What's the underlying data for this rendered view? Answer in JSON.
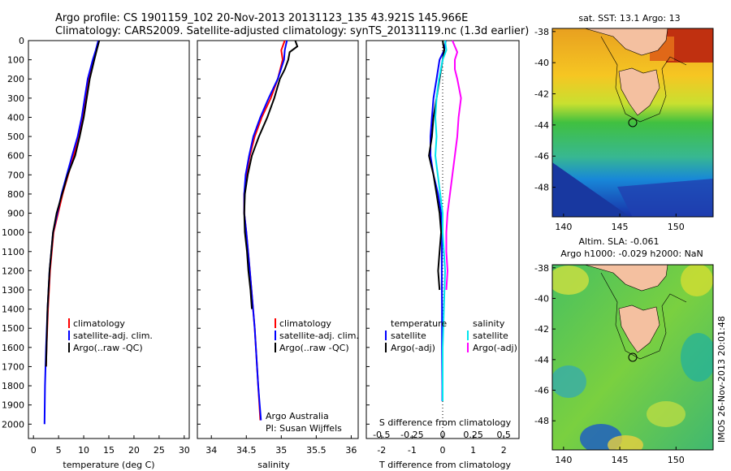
{
  "header": {
    "line1": "Argo profile: CS 1901159_102 20-Nov-2013 20131123_135 43.921S 145.966E",
    "line2": "Climatology: CARS2009. Satellite-adjusted climatology: synTS_20131119.nc (1.3d earlier)"
  },
  "colors": {
    "climatology": "#ff0000",
    "satellite": "#0000ff",
    "argo": "#000000",
    "salinity_sat": "#00e5ee",
    "salinity_argo": "#ff00ff"
  },
  "depth_axis": {
    "ticks": [
      "0",
      "100",
      "200",
      "300",
      "400",
      "500",
      "600",
      "700",
      "800",
      "900",
      "1000",
      "1100",
      "1200",
      "1300",
      "1400",
      "1500",
      "1600",
      "1700",
      "1800",
      "1900",
      "2000"
    ]
  },
  "chart_data": [
    {
      "type": "line",
      "panel": "temperature",
      "xlabel": "temperature (deg C)",
      "xlim": [
        -1,
        31
      ],
      "xticks": [
        "0",
        "5",
        "10",
        "15",
        "20",
        "25",
        "30"
      ],
      "ylim": [
        2075,
        0
      ],
      "legend": [
        "climatology",
        "satellite-adj. clim.",
        "Argo(..raw -QC)"
      ],
      "series": [
        {
          "name": "climatology",
          "depth": [
            0,
            50,
            100,
            200,
            300,
            400,
            500,
            600,
            800,
            1000,
            1200,
            1400,
            1600,
            1700
          ],
          "values": [
            13.0,
            12.5,
            12.0,
            11.0,
            10.4,
            9.8,
            9.0,
            8.0,
            5.8,
            4.0,
            3.3,
            2.9,
            2.6,
            2.5
          ]
        },
        {
          "name": "satellite-adj. clim.",
          "depth": [
            0,
            50,
            100,
            200,
            300,
            400,
            500,
            600,
            800,
            1000,
            1200,
            1400,
            1600,
            1800,
            2000
          ],
          "values": [
            12.9,
            12.4,
            11.8,
            10.8,
            10.2,
            9.6,
            8.8,
            7.7,
            5.6,
            3.9,
            3.2,
            2.8,
            2.5,
            2.3,
            2.2
          ]
        },
        {
          "name": "Argo(..raw -QC)",
          "depth": [
            0,
            50,
            100,
            200,
            300,
            400,
            500,
            600,
            700,
            800,
            900,
            1000,
            1200,
            1400,
            1600,
            1700
          ],
          "values": [
            13.1,
            12.6,
            12.1,
            11.2,
            10.6,
            10.0,
            9.2,
            8.3,
            6.8,
            5.7,
            4.6,
            3.9,
            3.2,
            2.8,
            2.6,
            2.5
          ]
        }
      ]
    },
    {
      "type": "line",
      "panel": "salinity",
      "xlabel": "salinity",
      "xlim": [
        33.8,
        36.1
      ],
      "xticks": [
        "34",
        "34.5",
        "35",
        "35.5",
        "36"
      ],
      "ylim": [
        2075,
        0
      ],
      "legend": [
        "climatology",
        "satellite-adj. clim.",
        "Argo(..raw -QC)"
      ],
      "annotation": [
        "Argo Australia",
        "PI: Susan Wijffels"
      ],
      "series": [
        {
          "name": "climatology",
          "depth": [
            0,
            50,
            100,
            200,
            300,
            400,
            500,
            600,
            700,
            800,
            900,
            1000,
            1200,
            1500,
            1800,
            1980
          ],
          "values": [
            35.05,
            35.0,
            35.02,
            34.95,
            34.85,
            34.72,
            34.62,
            34.55,
            34.5,
            34.47,
            34.47,
            34.5,
            34.55,
            34.62,
            34.67,
            34.7
          ]
        },
        {
          "name": "satellite-adj. clim.",
          "depth": [
            0,
            50,
            100,
            200,
            300,
            400,
            500,
            600,
            700,
            800,
            900,
            1000,
            1200,
            1500,
            1800,
            1980
          ],
          "values": [
            35.08,
            35.05,
            35.04,
            34.95,
            34.82,
            34.7,
            34.6,
            34.54,
            34.49,
            34.47,
            34.47,
            34.5,
            34.55,
            34.62,
            34.67,
            34.71
          ]
        },
        {
          "name": "Argo(..raw -QC)",
          "depth": [
            0,
            30,
            60,
            100,
            150,
            200,
            300,
            400,
            500,
            600,
            700,
            800,
            900,
            1000,
            1100,
            1200,
            1300,
            1400
          ],
          "values": [
            35.2,
            35.23,
            35.12,
            35.1,
            35.05,
            34.98,
            34.9,
            34.8,
            34.68,
            34.58,
            34.52,
            34.48,
            34.47,
            34.48,
            34.51,
            34.53,
            34.56,
            34.58
          ]
        }
      ]
    },
    {
      "type": "line",
      "panel": "differences",
      "xlabel_top": "S difference from climatology",
      "xticks_top": [
        "-0.5",
        "-0.25",
        "0",
        "0.25",
        "0.5"
      ],
      "xlabel": "T difference from climatology",
      "xlim": [
        -2.5,
        2.5
      ],
      "xticks": [
        "-2",
        "-1",
        "0",
        "1",
        "2"
      ],
      "ylim": [
        2075,
        0
      ],
      "legend_left": {
        "title": "temperature",
        "items": [
          "satellite",
          "Argo(-adj)"
        ]
      },
      "legend_right": {
        "title": "salinity",
        "items": [
          "satellite",
          "Argo(-adj)"
        ]
      },
      "series": [
        {
          "name": "temperature satellite",
          "depth": [
            0,
            50,
            100,
            200,
            300,
            400,
            500,
            600,
            700,
            800,
            900,
            1000,
            1200,
            1400,
            1600,
            1800,
            1880
          ],
          "values": [
            0.1,
            0.05,
            -0.1,
            -0.2,
            -0.3,
            -0.35,
            -0.4,
            -0.4,
            -0.3,
            -0.15,
            -0.05,
            -0.02,
            -0.03,
            -0.02,
            -0.02,
            -0.01,
            -0.01
          ]
        },
        {
          "name": "temperature Argo(-adj)",
          "depth": [
            0,
            50,
            100,
            200,
            300,
            400,
            500,
            600,
            700,
            800,
            900,
            1000,
            1100,
            1200,
            1300
          ],
          "values": [
            0.0,
            0.05,
            0.0,
            -0.1,
            -0.2,
            -0.3,
            -0.35,
            -0.45,
            -0.3,
            -0.2,
            -0.1,
            -0.05,
            -0.1,
            -0.15,
            -0.1
          ]
        },
        {
          "name": "salinity satellite",
          "depth": [
            0,
            50,
            100,
            200,
            300,
            400,
            500,
            600,
            700,
            800,
            900,
            1000,
            1200,
            1400,
            1600,
            1800,
            1880
          ],
          "values": [
            0.02,
            0.03,
            0.0,
            -0.03,
            -0.05,
            -0.06,
            -0.05,
            -0.06,
            -0.04,
            -0.02,
            0.0,
            0.0,
            0.02,
            0.01,
            0.0,
            0.0,
            0.0
          ]
        },
        {
          "name": "salinity Argo(-adj)",
          "depth": [
            0,
            30,
            60,
            100,
            150,
            200,
            300,
            400,
            500,
            600,
            700,
            800,
            900,
            1000,
            1100,
            1200,
            1300
          ],
          "values": [
            0.08,
            0.1,
            0.12,
            0.1,
            0.1,
            0.12,
            0.15,
            0.13,
            0.12,
            0.1,
            0.08,
            0.06,
            0.04,
            0.03,
            0.03,
            0.04,
            0.03
          ]
        }
      ]
    },
    {
      "type": "heatmap",
      "panel": "sst_map",
      "title": "sat. SST: 13.1 Argo: 13",
      "xticks": [
        "140",
        "145",
        "150"
      ],
      "yticks": [
        "-38",
        "-40",
        "-42",
        "-44",
        "-46",
        "-48"
      ],
      "xlim": [
        139,
        153.3
      ],
      "ylim": [
        -49.9,
        -37.8
      ],
      "marker": {
        "lon": 146.0,
        "lat": -43.9
      }
    },
    {
      "type": "heatmap",
      "panel": "sla_map",
      "title_line1": "Altim. SLA: -0.061",
      "title_line2": "Argo h1000: -0.029 h2000: NaN",
      "xticks": [
        "140",
        "145",
        "150"
      ],
      "yticks": [
        "-38",
        "-40",
        "-42",
        "-44",
        "-46",
        "-48"
      ],
      "xlim": [
        139,
        153.3
      ],
      "ylim": [
        -49.9,
        -37.8
      ],
      "marker": {
        "lon": 146.0,
        "lat": -43.9
      }
    }
  ],
  "credit": "IMOS 26-Nov-2013 20:01:48"
}
